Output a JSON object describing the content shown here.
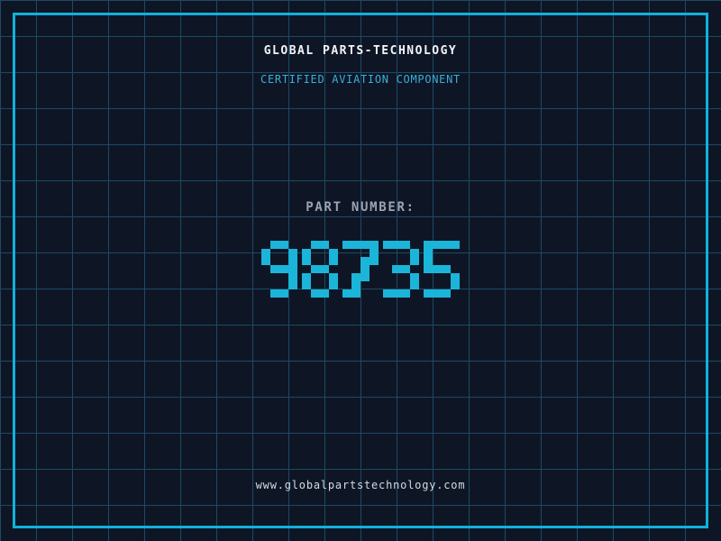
{
  "header": {
    "title": "GLOBAL PARTS-TECHNOLOGY",
    "subtitle": "CERTIFIED AVIATION COMPONENT"
  },
  "part": {
    "label": "PART NUMBER:",
    "number": "98735"
  },
  "footer": {
    "website": "www.globalpartstechnology.com"
  },
  "colors": {
    "background": "#0e1626",
    "grid_line": "#1c4a63",
    "frame": "#12b1da",
    "accent_cyan": "#3aaed8",
    "digit_cyan": "#1bb5d9",
    "label_gray": "#9aa4b4",
    "title_white": "#f2f5f7",
    "url_gray": "#d5dae0"
  }
}
